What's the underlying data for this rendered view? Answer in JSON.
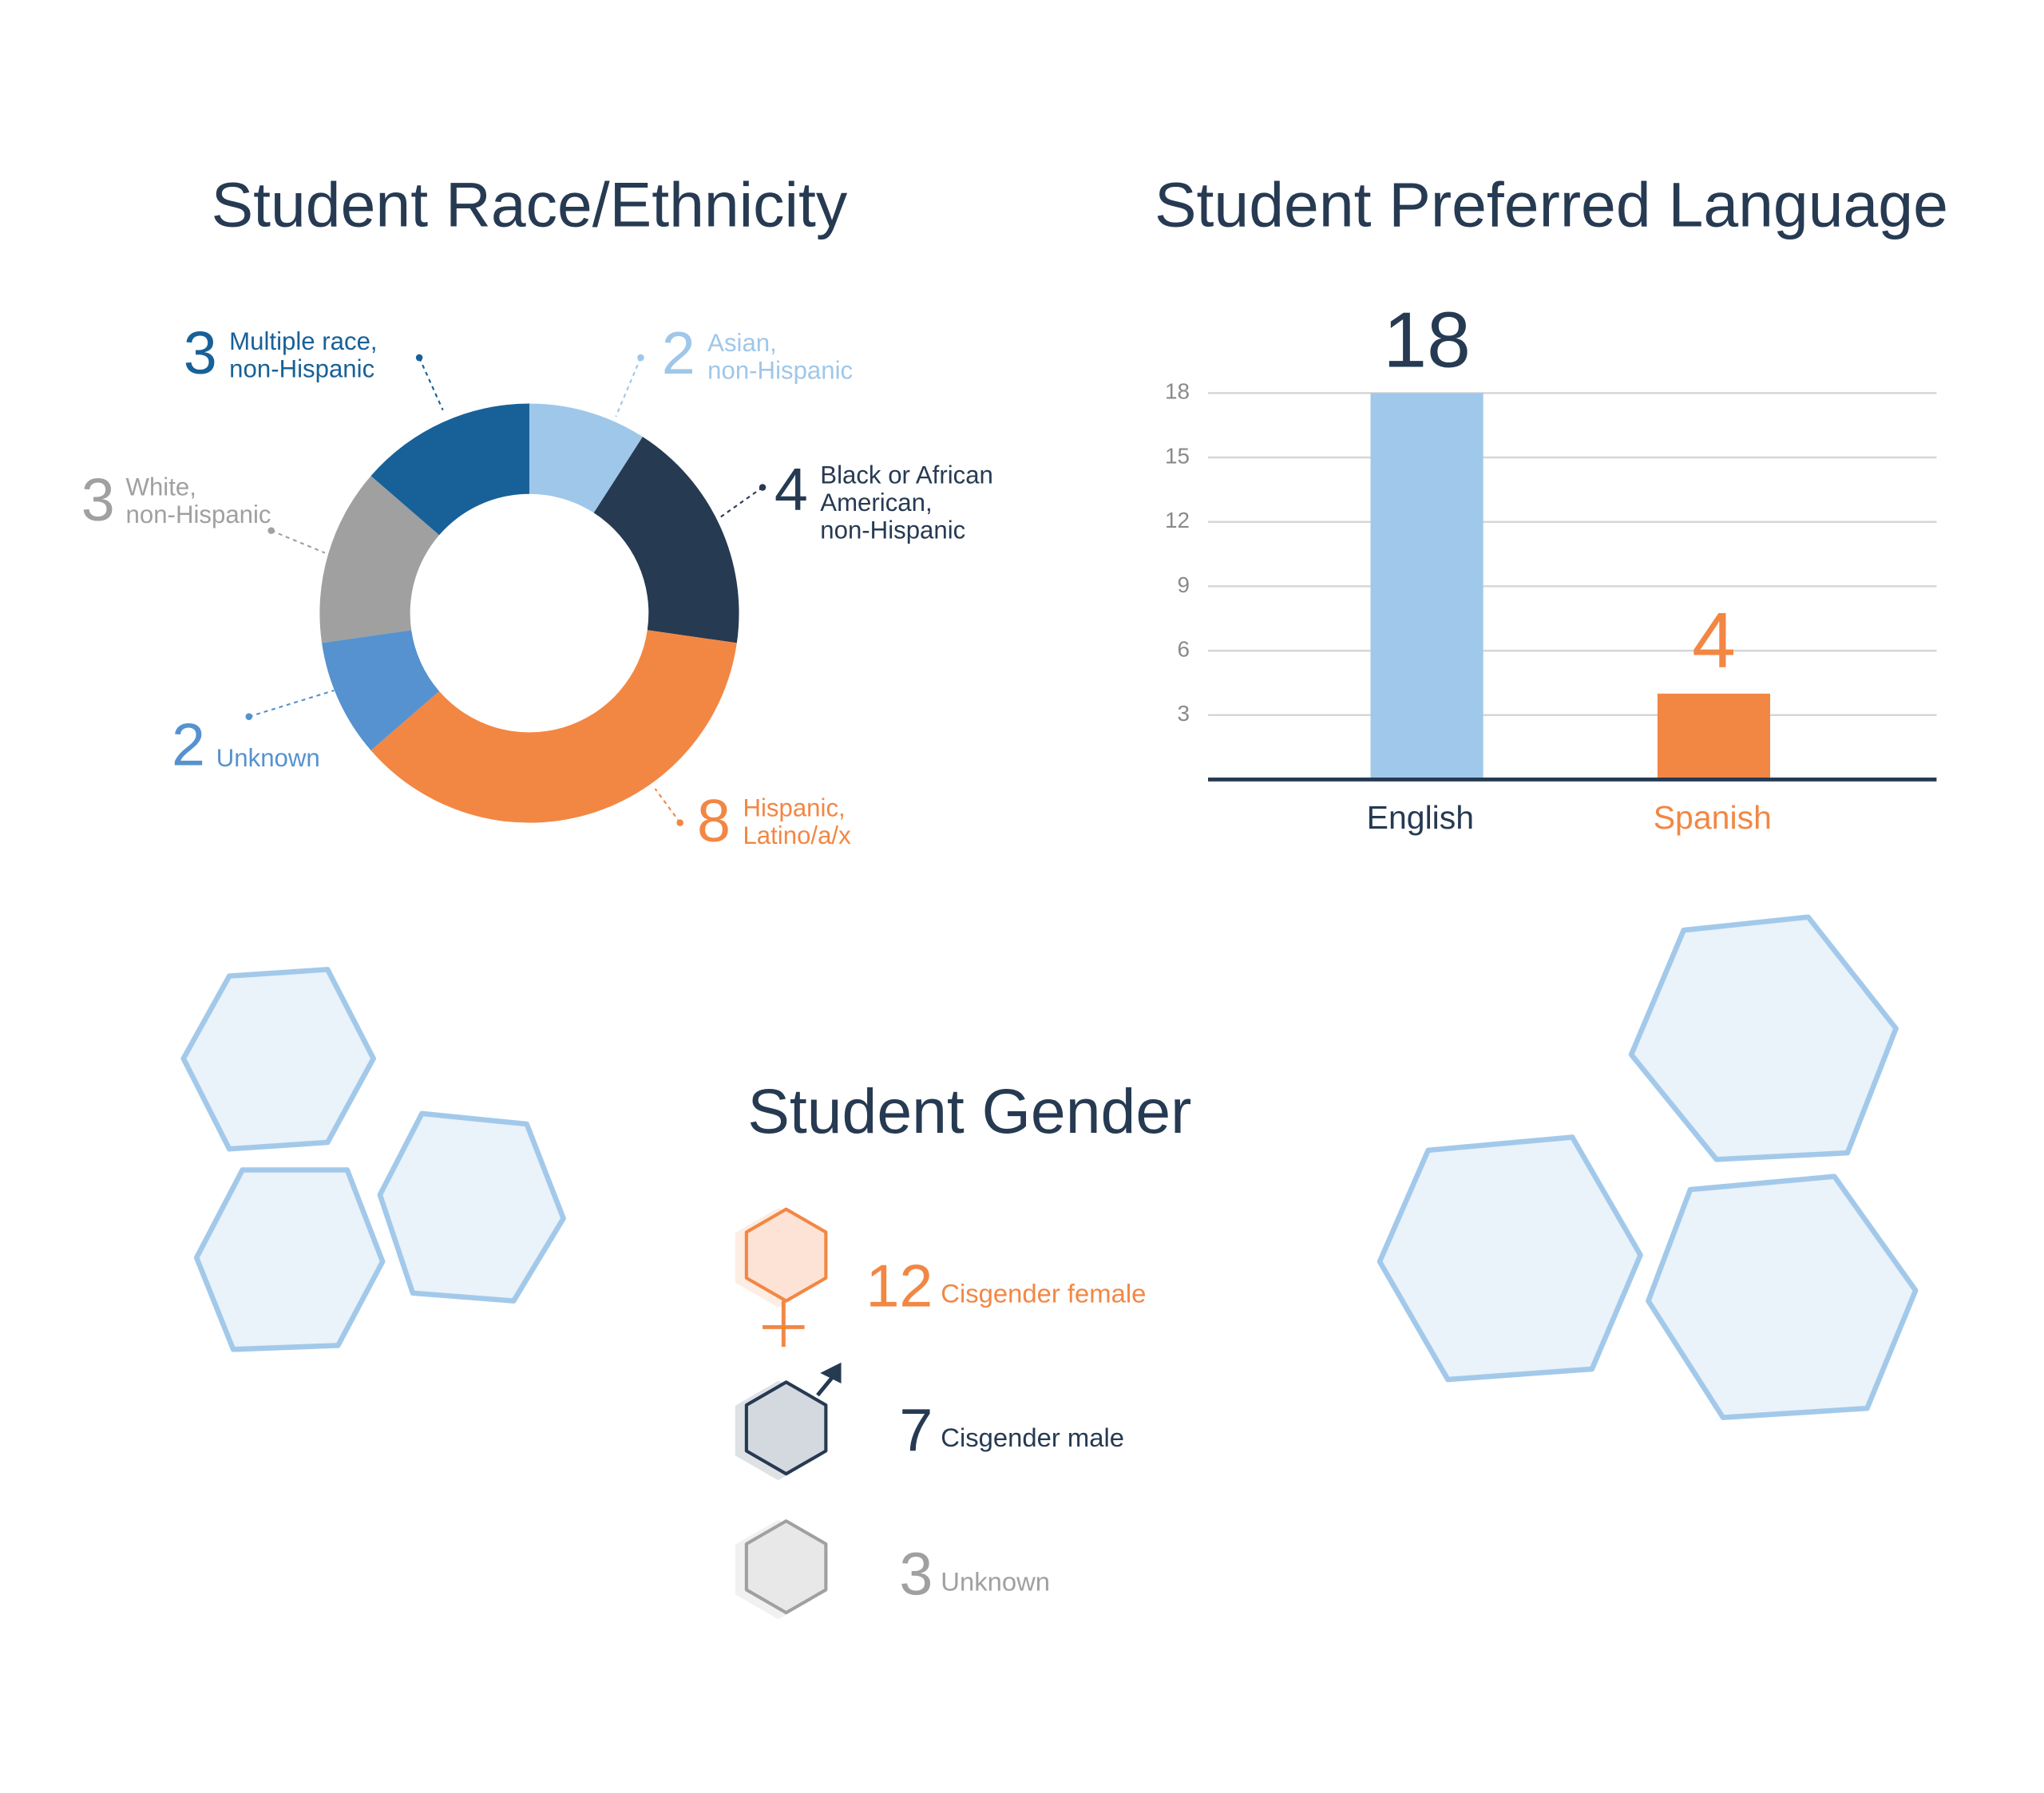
{
  "chart_data": [
    {
      "type": "pie",
      "title": "Student Race/Ethnicity",
      "donut": true,
      "categories": [
        "Asian,\nnon-Hispanic",
        "Black or African\nAmerican,\nnon-Hispanic",
        "Hispanic,\nLatino/a/x",
        "Unknown",
        "White,\nnon-Hispanic",
        "Multiple race,\nnon-Hispanic"
      ],
      "values": [
        2,
        4,
        8,
        2,
        3,
        3
      ],
      "colors": [
        "#9fc7e9",
        "#263a52",
        "#f28744",
        "#5592cf",
        "#a0a0a0",
        "#186198"
      ]
    },
    {
      "type": "bar",
      "title": "Student Preferred Language",
      "categories": [
        "English",
        "Spanish"
      ],
      "values": [
        18,
        4
      ],
      "colors": [
        "#a0c8ea",
        "#f28744"
      ],
      "label_colors": [
        "#263a52",
        "#f28744"
      ],
      "ylim": [
        0,
        18
      ],
      "yticks": [
        3,
        6,
        9,
        12,
        15,
        18
      ],
      "grid": true
    },
    {
      "type": "pictograph",
      "title": "Student Gender",
      "categories": [
        "Cisgender female",
        "Cisgender male",
        "Unknown"
      ],
      "values": [
        12,
        7,
        3
      ],
      "colors": [
        "#f28744",
        "#263a52",
        "#a0a0a0"
      ]
    }
  ]
}
